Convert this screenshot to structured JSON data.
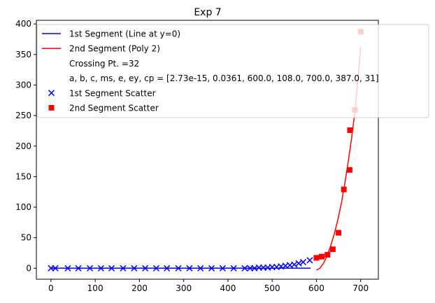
{
  "chart_data": {
    "type": "line",
    "title": "Exp 7",
    "xlabel": "",
    "ylabel": "",
    "xlim": [
      -33,
      740
    ],
    "ylim": [
      -18,
      406
    ],
    "xticks": [
      0,
      100,
      200,
      300,
      400,
      500,
      600,
      700
    ],
    "yticks": [
      0,
      50,
      100,
      150,
      200,
      250,
      300,
      350,
      400
    ],
    "xtick_labels": [
      "0",
      "100",
      "200",
      "300",
      "400",
      "500",
      "600",
      "700"
    ],
    "ytick_labels": [
      "0",
      "50",
      "100",
      "150",
      "200",
      "250",
      "300",
      "350",
      "400"
    ],
    "grid": false,
    "legend_position": "upper-left",
    "legend": [
      {
        "label": "1st Segment (Line at y=0)",
        "kind": "line",
        "color": "#0000ff"
      },
      {
        "label": "2nd Segment (Poly 2)",
        "kind": "line",
        "color": "#ff0000"
      },
      {
        "label": "Crossing Pt. =32",
        "kind": "none",
        "color": "#ffffff"
      },
      {
        "label": "a, b, c, ms, e, ey, cp = [2.73e-15, 0.0361, 600.0, 108.0, 700.0, 387.0, 31]",
        "kind": "none",
        "color": "#ffffff"
      },
      {
        "label": "1st Segment Scatter",
        "kind": "x-marker",
        "color": "#0000ff"
      },
      {
        "label": "2nd Segment Scatter",
        "kind": "square-marker",
        "color": "#ff0000"
      }
    ],
    "series": [
      {
        "name": "1st Segment (Line at y=0)",
        "kind": "line",
        "color": "#0000ff",
        "x": [
          0,
          587
        ],
        "y": [
          0,
          0
        ]
      },
      {
        "name": "2nd Segment (Poly 2)",
        "kind": "line",
        "color": "#ff0000",
        "x": [
          600,
          608,
          616,
          624,
          632,
          640,
          648,
          656,
          664,
          672,
          680,
          688,
          694,
          700
        ],
        "y": [
          -3,
          0,
          8,
          20,
          36,
          55,
          78,
          105,
          138,
          175,
          215,
          262,
          310,
          362
        ]
      },
      {
        "name": "1st Segment Scatter",
        "kind": "x-marker",
        "color": "#0000ff",
        "x": [
          0,
          10,
          38,
          62,
          88,
          113,
          137,
          163,
          188,
          213,
          238,
          262,
          288,
          313,
          338,
          363,
          388,
          413,
          438,
          450,
          460,
          470,
          480,
          490,
          500,
          510,
          520,
          530,
          540,
          550,
          560,
          570,
          585
        ],
        "y": [
          0,
          0,
          0,
          0,
          0,
          0,
          0,
          0,
          0,
          0,
          0,
          0,
          0,
          0,
          0,
          0,
          0,
          0,
          0,
          0,
          0,
          1,
          1,
          1,
          2,
          2,
          3,
          4,
          5,
          6,
          8,
          10,
          13
        ]
      },
      {
        "name": "2nd Segment Scatter",
        "kind": "square-marker",
        "color": "#ff0000",
        "x": [
          600,
          612,
          625,
          637,
          650,
          662,
          675,
          687,
          700,
          676
        ],
        "y": [
          17,
          19,
          22,
          31,
          58,
          129,
          161,
          259,
          387,
          226
        ]
      }
    ]
  }
}
